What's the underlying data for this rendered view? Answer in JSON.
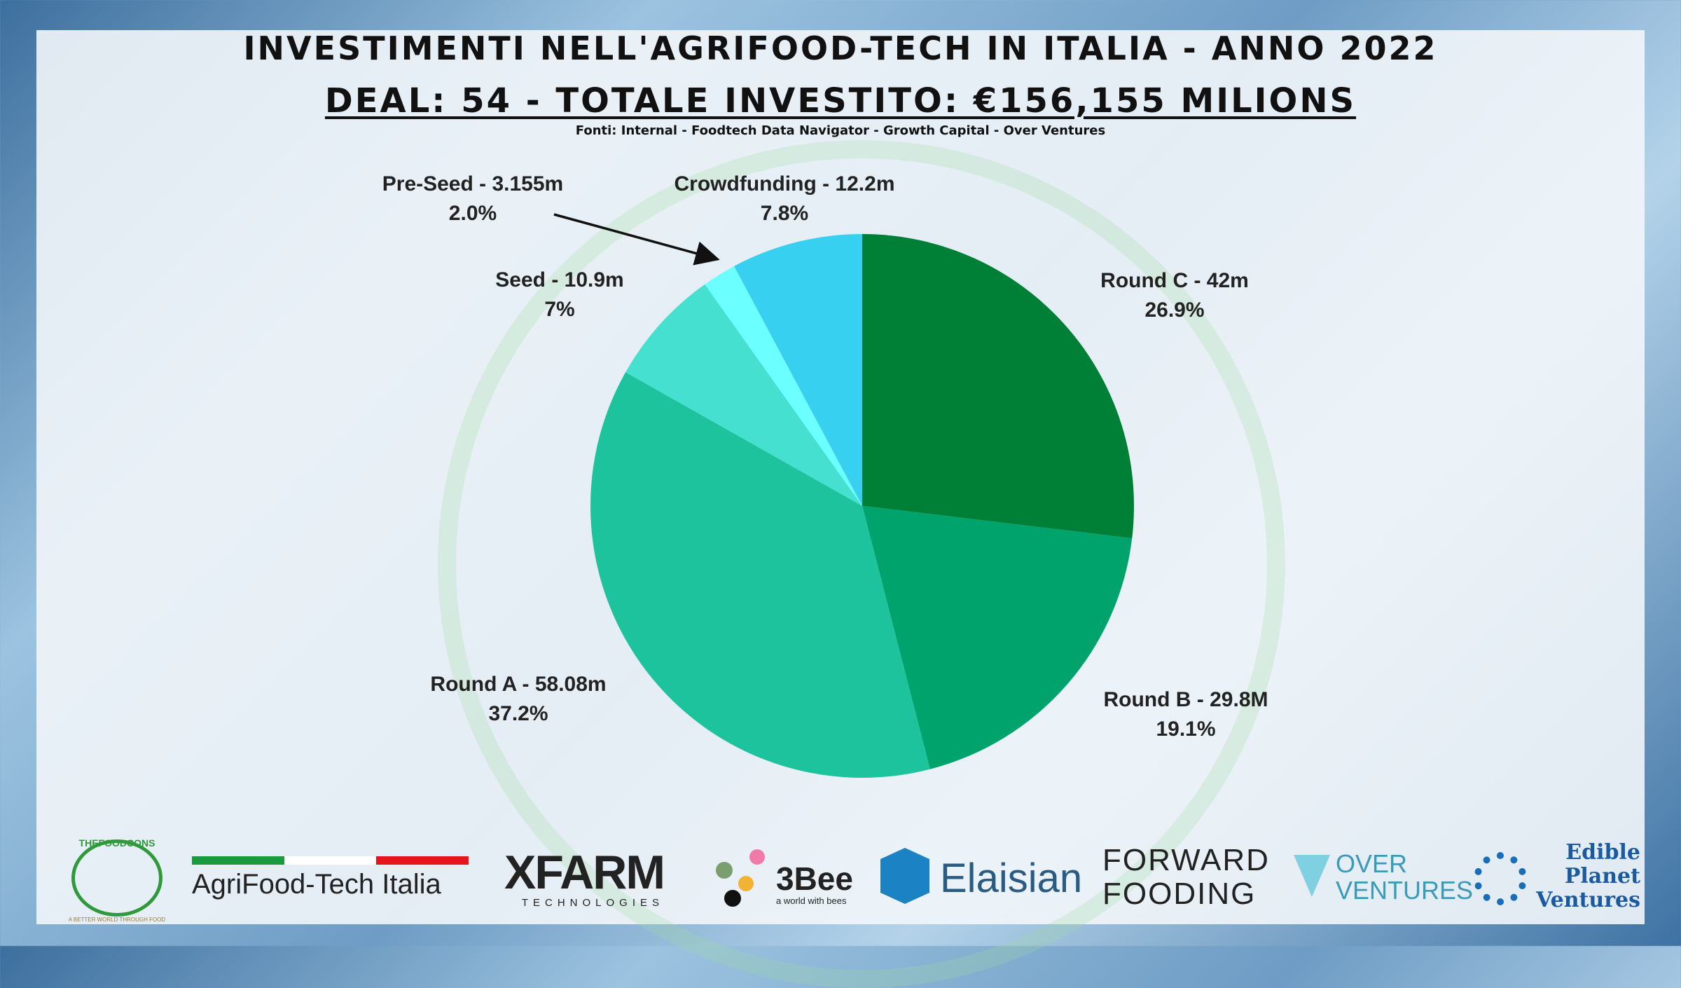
{
  "title": "INVESTIMENTI NELL'AGRIFOOD-TECH IN ITALIA - ANNO 2022",
  "subtitle": "DEAL: 54 - TOTALE INVESTITO: €156,155 MILIONS",
  "source": "Fonti: Internal - Foodtech Data Navigator - Growth Capital - Over Ventures",
  "chart_data": {
    "type": "pie",
    "title": "INVESTIMENTI NELL'AGRIFOOD-TECH IN ITALIA - ANNO 2022",
    "start": "12 o'clock, clockwise",
    "slices": [
      {
        "name": "Round C",
        "label": "Round C - 42m",
        "value": 42,
        "percent": "26.9%",
        "color": "#007f37"
      },
      {
        "name": "Round B",
        "label": "Round B - 29.8M",
        "value": 29.8,
        "percent": "19.1%",
        "color": "#00a36c"
      },
      {
        "name": "Round A",
        "label": "Round A - 58.08m",
        "value": 58.08,
        "percent": "37.2%",
        "color": "#1dc39c"
      },
      {
        "name": "Seed",
        "label": "Seed - 10.9m",
        "value": 10.9,
        "percent": "7%",
        "color": "#45e0cf"
      },
      {
        "name": "Pre-Seed",
        "label": "Pre-Seed - 3.155m",
        "value": 3.155,
        "percent": "2.0%",
        "color": "#6bffff"
      },
      {
        "name": "Crowdfunding",
        "label": "Crowdfunding - 12.2m",
        "value": 12.2,
        "percent": "7.8%",
        "color": "#38d0f0"
      }
    ]
  },
  "logos": {
    "thefoodcons": "THEFOODCONS",
    "thefoodcons_tag": "A BETTER WORLD THROUGH FOOD",
    "agrifood": "AgriFood-Tech Italia",
    "xfarm": "XFARM",
    "xfarm_sub": "TECHNOLOGIES",
    "threebee": "3Bee",
    "threebee_sub": "a world with bees",
    "elaisian": "Elaisian",
    "forward1": "FORWARD",
    "forward2": "FOODING",
    "over1": "OVER",
    "over2": "VENTURES",
    "edible1": "Edible",
    "edible2": "Planet",
    "edible3": "Ventures"
  }
}
